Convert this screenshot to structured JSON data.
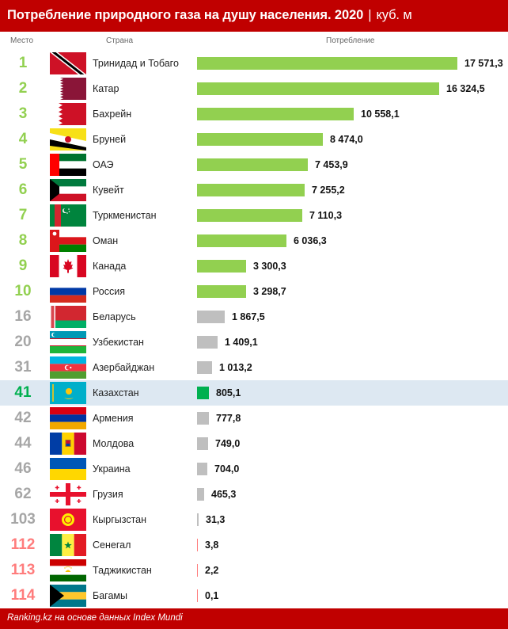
{
  "header": {
    "title": "Потребление природного газа на душу населения. 2020",
    "separator": "|",
    "unit": "куб. м"
  },
  "columns": {
    "rank": "Место",
    "country": "Страна",
    "value": "Потребление"
  },
  "colors": {
    "top10_bar": "#92d050",
    "other_bar": "#bfbfbf",
    "kazakhstan_bar": "#00b050",
    "low_bar": "#ff7c7c",
    "header_bg": "#c00000",
    "highlight_row": "#dde8f2"
  },
  "footer": {
    "source": "Ranking.kz на основе данных Index Mundi"
  },
  "chart_data": {
    "type": "bar",
    "orientation": "horizontal",
    "title": "Потребление природного газа на душу населения. 2020",
    "unit": "куб. м",
    "rows": [
      {
        "rank": "1",
        "country": "Тринидад и Тобаго",
        "value": 17571.3,
        "label": "17 571,3",
        "group": "top",
        "flag": "trinidad-and-tobago-flag-icon"
      },
      {
        "rank": "2",
        "country": "Катар",
        "value": 16324.5,
        "label": "16 324,5",
        "group": "top",
        "flag": "qatar-flag-icon"
      },
      {
        "rank": "3",
        "country": "Бахрейн",
        "value": 10558.1,
        "label": "10 558,1",
        "group": "top",
        "flag": "bahrain-flag-icon"
      },
      {
        "rank": "4",
        "country": "Бруней",
        "value": 8474.0,
        "label": "8 474,0",
        "group": "top",
        "flag": "brunei-flag-icon"
      },
      {
        "rank": "5",
        "country": "ОАЭ",
        "value": 7453.9,
        "label": "7 453,9",
        "group": "top",
        "flag": "uae-flag-icon"
      },
      {
        "rank": "6",
        "country": "Кувейт",
        "value": 7255.2,
        "label": "7 255,2",
        "group": "top",
        "flag": "kuwait-flag-icon"
      },
      {
        "rank": "7",
        "country": "Туркменистан",
        "value": 7110.3,
        "label": "7 110,3",
        "group": "top",
        "flag": "turkmenistan-flag-icon"
      },
      {
        "rank": "8",
        "country": "Оман",
        "value": 6036.3,
        "label": "6 036,3",
        "group": "top",
        "flag": "oman-flag-icon"
      },
      {
        "rank": "9",
        "country": "Канада",
        "value": 3300.3,
        "label": "3 300,3",
        "group": "top",
        "flag": "canada-flag-icon"
      },
      {
        "rank": "10",
        "country": "Россия",
        "value": 3298.7,
        "label": "3 298,7",
        "group": "top",
        "flag": "russia-flag-icon"
      },
      {
        "rank": "16",
        "country": "Беларусь",
        "value": 1867.5,
        "label": "1 867,5",
        "group": "mid",
        "flag": "belarus-flag-icon"
      },
      {
        "rank": "20",
        "country": "Узбекистан",
        "value": 1409.1,
        "label": "1 409,1",
        "group": "mid",
        "flag": "uzbekistan-flag-icon"
      },
      {
        "rank": "31",
        "country": "Азербайджан",
        "value": 1013.2,
        "label": "1 013,2",
        "group": "mid",
        "flag": "azerbaijan-flag-icon"
      },
      {
        "rank": "41",
        "country": "Казахстан",
        "value": 805.1,
        "label": "805,1",
        "group": "kz",
        "flag": "kazakhstan-flag-icon"
      },
      {
        "rank": "42",
        "country": "Армения",
        "value": 777.8,
        "label": "777,8",
        "group": "mid",
        "flag": "armenia-flag-icon"
      },
      {
        "rank": "44",
        "country": "Молдова",
        "value": 749.0,
        "label": "749,0",
        "group": "mid",
        "flag": "moldova-flag-icon"
      },
      {
        "rank": "46",
        "country": "Украина",
        "value": 704.0,
        "label": "704,0",
        "group": "mid",
        "flag": "ukraine-flag-icon"
      },
      {
        "rank": "62",
        "country": "Грузия",
        "value": 465.3,
        "label": "465,3",
        "group": "mid",
        "flag": "georgia-flag-icon"
      },
      {
        "rank": "103",
        "country": "Кыргызстан",
        "value": 31.3,
        "label": "31,3",
        "group": "mid",
        "flag": "kyrgyzstan-flag-icon"
      },
      {
        "rank": "112",
        "country": "Сенегал",
        "value": 3.8,
        "label": "3,8",
        "group": "low",
        "flag": "senegal-flag-icon"
      },
      {
        "rank": "113",
        "country": "Таджикистан",
        "value": 2.2,
        "label": "2,2",
        "group": "low",
        "flag": "tajikistan-flag-icon"
      },
      {
        "rank": "114",
        "country": "Багамы",
        "value": 0.1,
        "label": "0,1",
        "group": "low",
        "flag": "bahamas-flag-icon"
      }
    ]
  }
}
